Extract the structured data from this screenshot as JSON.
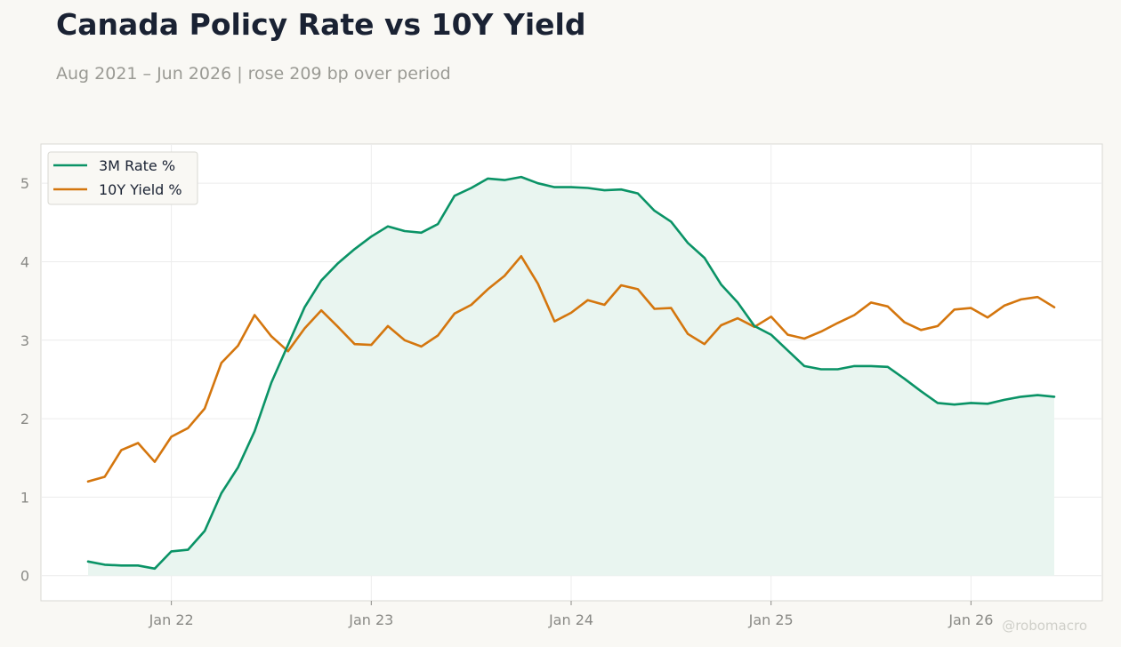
{
  "title": "Canada Policy Rate vs 10Y Yield",
  "subtitle": "Aug 2021 – Jun 2026 | rose 209 bp over period",
  "watermark": "@robomacro",
  "colors": {
    "rate": "#0a9366",
    "yield": "#d4760e",
    "fill": "#e9f5f0",
    "grid": "#ececec",
    "axis_text": "#8a8a86",
    "frame": "#d9d9d3"
  },
  "chart_data": {
    "type": "line",
    "x_start": "2021-08",
    "x_end": "2026-06",
    "x_ticks": [
      "2022-01",
      "2023-01",
      "2024-01",
      "2025-01",
      "2026-01"
    ],
    "x_tick_labels": [
      "Jan 22",
      "Jan 23",
      "Jan 24",
      "Jan 25",
      "Jan 26"
    ],
    "ylim": [
      -0.32,
      5.5
    ],
    "y_ticks": [
      0,
      1,
      2,
      3,
      4,
      5
    ],
    "grid": true,
    "legend": "top-left",
    "series": [
      {
        "name": "3M Rate %",
        "values": [
          0.18,
          0.14,
          0.13,
          0.13,
          0.09,
          0.31,
          0.33,
          0.57,
          1.05,
          1.38,
          1.84,
          2.46,
          2.94,
          3.42,
          3.76,
          3.98,
          4.16,
          4.32,
          4.45,
          4.39,
          4.37,
          4.48,
          4.84,
          4.94,
          5.06,
          5.04,
          5.08,
          5.0,
          4.95,
          4.95,
          4.94,
          4.91,
          4.92,
          4.87,
          4.65,
          4.51,
          4.24,
          4.05,
          3.71,
          3.48,
          3.18,
          3.07,
          2.87,
          2.67,
          2.63,
          2.63,
          2.67,
          2.67,
          2.66,
          2.51,
          2.35,
          2.2,
          2.18,
          2.2,
          2.19,
          2.24,
          2.28,
          2.3,
          2.28
        ]
      },
      {
        "name": "10Y Yield %",
        "values": [
          1.2,
          1.26,
          1.6,
          1.69,
          1.45,
          1.77,
          1.88,
          2.13,
          2.71,
          2.93,
          3.32,
          3.05,
          2.86,
          3.15,
          3.38,
          3.17,
          2.95,
          2.94,
          3.18,
          3.0,
          2.92,
          3.06,
          3.34,
          3.45,
          3.65,
          3.82,
          4.07,
          3.72,
          3.24,
          3.35,
          3.51,
          3.45,
          3.7,
          3.65,
          3.4,
          3.41,
          3.08,
          2.95,
          3.19,
          3.28,
          3.17,
          3.3,
          3.07,
          3.02,
          3.11,
          3.22,
          3.32,
          3.48,
          3.43,
          3.23,
          3.13,
          3.18,
          3.39,
          3.41,
          3.29,
          3.44,
          3.52,
          3.55,
          3.42
        ]
      }
    ]
  }
}
